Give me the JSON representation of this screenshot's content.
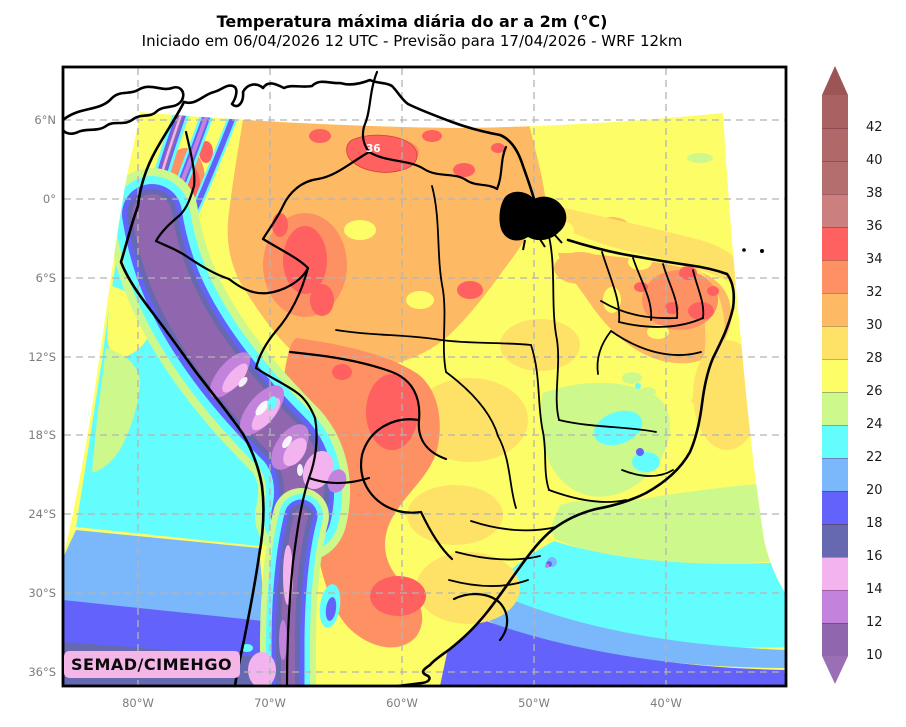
{
  "figure": {
    "title": "Temperatura máxima diária do ar a 2m (°C)",
    "subtitle": "Iniciado em 06/04/2026 12 UTC - Previsão para 17/04/2026 - WRF 12km",
    "credit": "SEMAD/CIMEHGO"
  },
  "axes": {
    "lat_ticks": [
      "6°N",
      "0°",
      "6°S",
      "12°S",
      "18°S",
      "24°S",
      "30°S",
      "36°S"
    ],
    "lon_ticks": [
      "80°W",
      "70°W",
      "60°W",
      "50°W",
      "40°W"
    ]
  },
  "colorbar": {
    "tick_labels": [
      "42",
      "40",
      "38",
      "36",
      "34",
      "32",
      "30",
      "28",
      "26",
      "24",
      "22",
      "20",
      "18",
      "16",
      "14",
      "12",
      "10"
    ],
    "arrow_up_color": "#9d5454",
    "arrow_down_color": "#9a6fb5",
    "segments": [
      {
        "range": "42-44",
        "color": "#a96161"
      },
      {
        "range": "40-42",
        "color": "#b16868"
      },
      {
        "range": "38-40",
        "color": "#b56e6e"
      },
      {
        "range": "36-38",
        "color": "#cb7f7f"
      },
      {
        "range": "34-36",
        "color": "#ff6060"
      },
      {
        "range": "32-34",
        "color": "#fe9163"
      },
      {
        "range": "30-32",
        "color": "#fdb963"
      },
      {
        "range": "28-30",
        "color": "#fee268"
      },
      {
        "range": "26-28",
        "color": "#fdfd67"
      },
      {
        "range": "24-26",
        "color": "#cdf98c"
      },
      {
        "range": "22-24",
        "color": "#63fdfd"
      },
      {
        "range": "20-22",
        "color": "#7ab7fb"
      },
      {
        "range": "18-20",
        "color": "#6363fb"
      },
      {
        "range": "16-18",
        "color": "#6668b0"
      },
      {
        "range": "14-16",
        "color": "#f2b3ee"
      },
      {
        "range": "12-14",
        "color": "#c383dd"
      },
      {
        "range": "10-12",
        "color": "#9066ae"
      }
    ]
  },
  "map": {
    "contour_label": "36"
  },
  "chart_data": {
    "type": "heatmap",
    "subtype": "filled-contour-weather-map",
    "title": "Temperatura máxima diária do ar a 2m (°C)",
    "subtitle": "Iniciado em 06/04/2026 12 UTC - Previsão para 17/04/2026 - WRF 12km",
    "variable": "Temperatura máxima diária do ar a 2m",
    "units": "°C",
    "model": "WRF 12km",
    "init_time": "06/04/2026 12 UTC",
    "valid_date": "17/04/2026",
    "region": "South America / Brazil",
    "x_ticks": [
      "80°W",
      "70°W",
      "60°W",
      "50°W",
      "40°W"
    ],
    "y_ticks": [
      "6°N",
      "0°",
      "6°S",
      "12°S",
      "18°S",
      "24°S",
      "30°S",
      "36°S"
    ],
    "contour_levels_c": [
      10,
      12,
      14,
      16,
      18,
      20,
      22,
      24,
      26,
      28,
      30,
      32,
      34,
      36,
      38,
      40,
      42,
      44
    ],
    "palette": [
      {
        "var": "c42",
        "range": "42-44",
        "color": "#a96161"
      },
      {
        "var": "c40",
        "range": "40-42",
        "color": "#b16868"
      },
      {
        "var": "c38",
        "range": "38-40",
        "color": "#b56e6e"
      },
      {
        "var": "c36",
        "range": "36-38",
        "color": "#cb7f7f"
      },
      {
        "var": "c34",
        "range": "34-36",
        "color": "#ff6060"
      },
      {
        "var": "c32",
        "range": "32-34",
        "color": "#fe9163"
      },
      {
        "var": "c30",
        "range": "30-32",
        "color": "#fdb963"
      },
      {
        "var": "c28",
        "range": "28-30",
        "color": "#fee268"
      },
      {
        "var": "c26",
        "range": "26-28",
        "color": "#fdfd67"
      },
      {
        "var": "c24",
        "range": "24-26",
        "color": "#cdf98c"
      },
      {
        "var": "c22",
        "range": "22-24",
        "color": "#63fdfd"
      },
      {
        "var": "c20",
        "range": "20-22",
        "color": "#7ab7fb"
      },
      {
        "var": "c18",
        "range": "18-20",
        "color": "#6363fb"
      },
      {
        "var": "c16",
        "range": "16-18",
        "color": "#6668b0"
      },
      {
        "var": "c14",
        "range": "14-16",
        "color": "#f2b3ee"
      },
      {
        "var": "c12",
        "range": "12-14",
        "color": "#c383dd"
      },
      {
        "var": "c10",
        "range": "10-12",
        "color": "#9066ae"
      },
      {
        "var": "cup",
        "range": ">44",
        "color": "#9d5454"
      },
      {
        "var": "cdn",
        "range": "<10",
        "color": "#9a6fb5"
      }
    ],
    "annotations": [
      {
        "text": "36",
        "meaning": "contour label on 36 °C isoline, northern Amazon"
      }
    ],
    "regional_values_c": [
      {
        "area": "Amazon basin / north Brazil",
        "tmax": "30-36"
      },
      {
        "area": "Northeast Brazil interior",
        "tmax": "30-36"
      },
      {
        "area": "Bolivia-Paraguay Chaco and N Argentina",
        "tmax": "32-36"
      },
      {
        "area": "Central Brazil plateau",
        "tmax": "26-30"
      },
      {
        "area": "Southeast Brazil highlands",
        "tmax": "22-26"
      },
      {
        "area": "Andes cordillera",
        "tmax": "10-18"
      },
      {
        "area": "South Atlantic ocean (south)",
        "tmax": "18-26"
      },
      {
        "area": "Pacific ocean / Chile coast (south)",
        "tmax": "16-22"
      }
    ],
    "credit": "SEMAD/CIMEHGO"
  }
}
